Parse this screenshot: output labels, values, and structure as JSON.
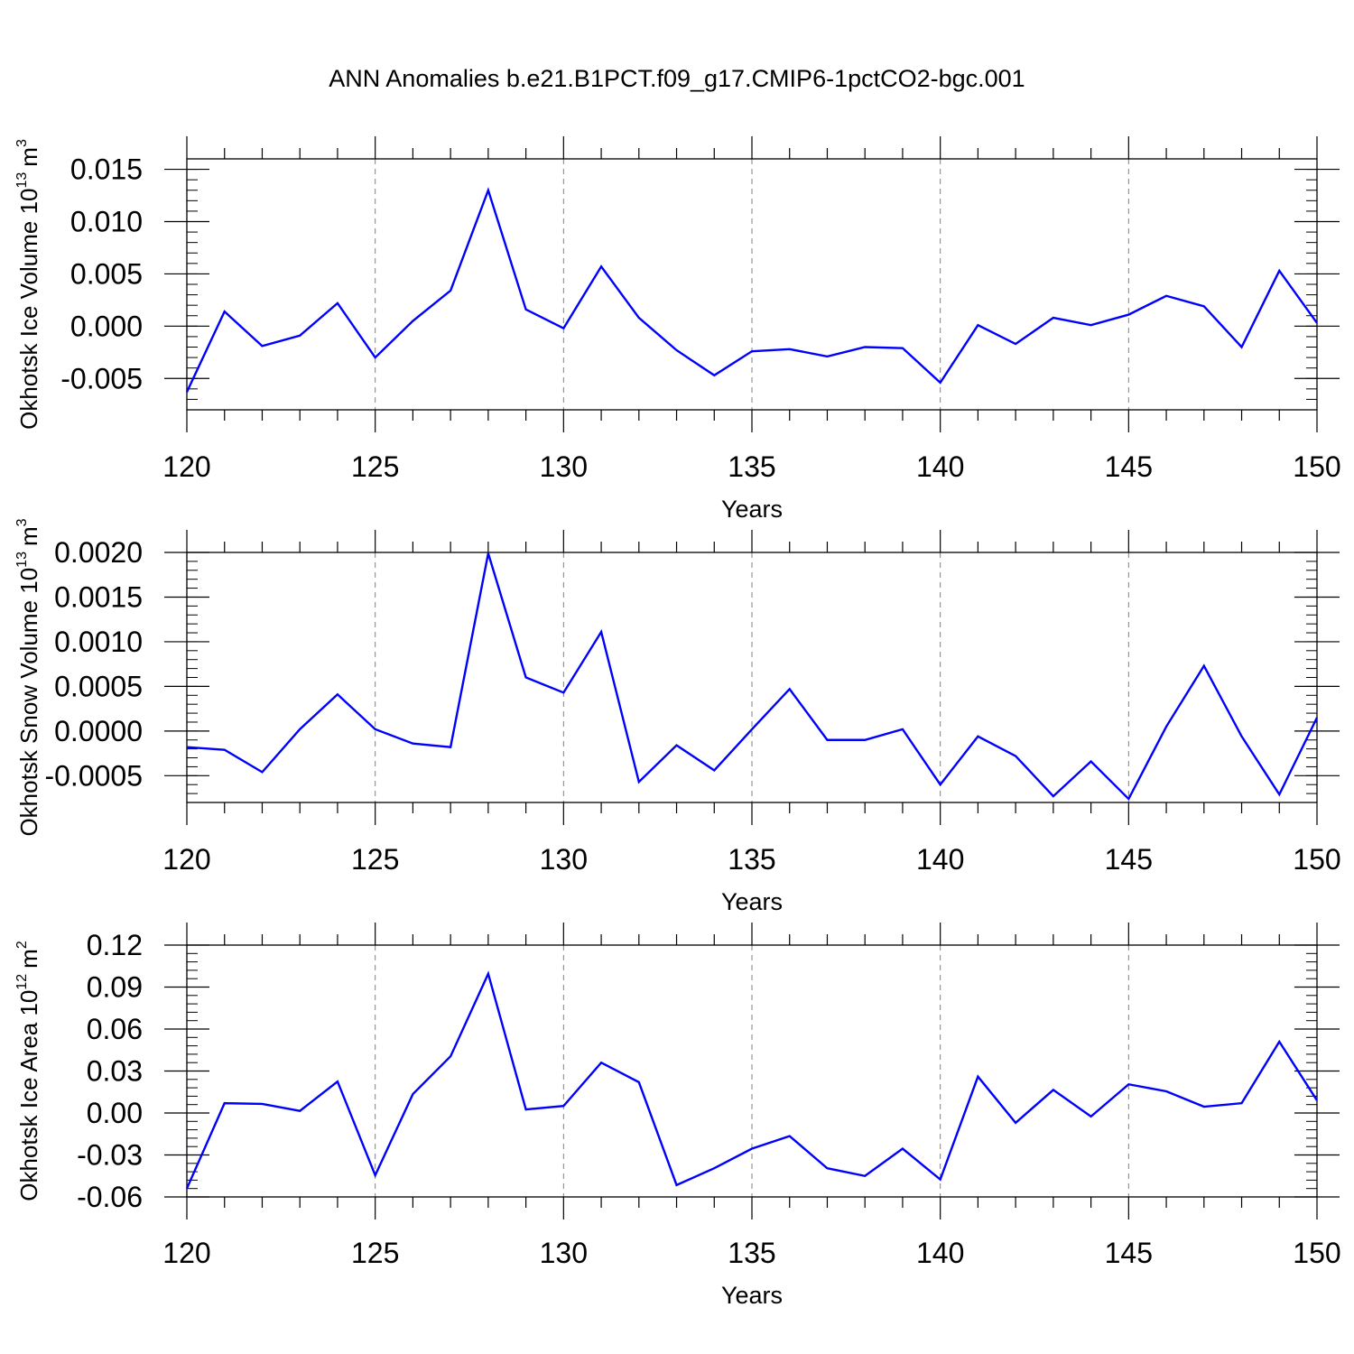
{
  "title": "ANN Anomalies b.e21.B1PCT.f09_g17.CMIP6-1pctCO2-bgc.001",
  "colors": {
    "line": "#0000ff",
    "axis": "#000000",
    "grid": "#808080"
  },
  "chart_data": [
    {
      "type": "line",
      "ylabel_main": "Okhotsk Ice Volume 10",
      "ylabel_exp": "13",
      "ylabel_unit": "m",
      "ylabel_unit_exp": "3",
      "xlabel": "Years",
      "xlim": [
        120,
        150
      ],
      "ylim": [
        -0.008,
        0.016
      ],
      "x_ticks": [
        "120",
        "125",
        "130",
        "135",
        "140",
        "145",
        "150"
      ],
      "y_ticks": [
        "0.015",
        "0.010",
        "0.005",
        "0.000",
        "-0.005"
      ],
      "y_tick_values": [
        0.015,
        0.01,
        0.005,
        0.0,
        -0.005
      ],
      "y_minor_step": 0.001,
      "x": [
        120,
        121,
        122,
        123,
        124,
        125,
        126,
        127,
        128,
        129,
        130,
        131,
        132,
        133,
        134,
        135,
        136,
        137,
        138,
        139,
        140,
        141,
        142,
        143,
        144,
        145,
        146,
        147,
        148,
        149,
        150
      ],
      "series": [
        {
          "values": [
            -0.0063,
            0.0014,
            -0.0019,
            -0.0009,
            0.0022,
            -0.003,
            0.0005,
            0.0034,
            0.013,
            0.0016,
            -0.0002,
            0.0057,
            0.0008,
            -0.0023,
            -0.0047,
            -0.0024,
            -0.0022,
            -0.0029,
            -0.002,
            -0.0021,
            -0.0054,
            0.0001,
            -0.0017,
            0.0008,
            0.0001,
            0.0011,
            0.0029,
            0.0019,
            -0.002,
            0.0053,
            0.0003
          ]
        }
      ]
    },
    {
      "type": "line",
      "ylabel_main": "Okhotsk Snow Volume 10",
      "ylabel_exp": "13",
      "ylabel_unit": "m",
      "ylabel_unit_exp": "3",
      "xlabel": "Years",
      "xlim": [
        120,
        150
      ],
      "ylim": [
        -0.0008,
        0.002
      ],
      "x_ticks": [
        "120",
        "125",
        "130",
        "135",
        "140",
        "145",
        "150"
      ],
      "y_ticks": [
        "0.0020",
        "0.0015",
        "0.0010",
        "0.0005",
        "0.0000",
        "-0.0005"
      ],
      "y_tick_values": [
        0.002,
        0.0015,
        0.001,
        0.0005,
        0.0,
        -0.0005
      ],
      "y_minor_step": 0.0001,
      "x": [
        120,
        121,
        122,
        123,
        124,
        125,
        126,
        127,
        128,
        129,
        130,
        131,
        132,
        133,
        134,
        135,
        136,
        137,
        138,
        139,
        140,
        141,
        142,
        143,
        144,
        145,
        146,
        147,
        148,
        149,
        150
      ],
      "series": [
        {
          "values": [
            -0.00018,
            -0.00021,
            -0.00046,
            2e-05,
            0.00041,
            2e-05,
            -0.00014,
            -0.00018,
            0.00199,
            0.0006,
            0.00043,
            0.00111,
            -0.00057,
            -0.00016,
            -0.00044,
            2e-05,
            0.00047,
            -0.0001,
            -0.0001,
            2e-05,
            -0.0006,
            -6e-05,
            -0.00028,
            -0.00073,
            -0.00034,
            -0.00076,
            5e-05,
            0.00073,
            -6e-05,
            -0.00071,
            0.00015
          ]
        }
      ]
    },
    {
      "type": "line",
      "ylabel_main": "Okhotsk Ice Area 10",
      "ylabel_exp": "12",
      "ylabel_unit": "m",
      "ylabel_unit_exp": "2",
      "xlabel": "Years",
      "xlim": [
        120,
        150
      ],
      "ylim": [
        -0.06,
        0.12
      ],
      "x_ticks": [
        "120",
        "125",
        "130",
        "135",
        "140",
        "145",
        "150"
      ],
      "y_ticks": [
        "0.12",
        "0.09",
        "0.06",
        "0.03",
        "0.00",
        "-0.03",
        "-0.06"
      ],
      "y_tick_values": [
        0.12,
        0.09,
        0.06,
        0.03,
        0.0,
        -0.03,
        -0.06
      ],
      "y_minor_step": 0.006,
      "x": [
        120,
        121,
        122,
        123,
        124,
        125,
        126,
        127,
        128,
        129,
        130,
        131,
        132,
        133,
        134,
        135,
        136,
        137,
        138,
        139,
        140,
        141,
        142,
        143,
        144,
        145,
        146,
        147,
        148,
        149,
        150
      ],
      "series": [
        {
          "values": [
            -0.054,
            0.007,
            0.0065,
            0.0015,
            0.0225,
            -0.0445,
            0.0135,
            0.0405,
            0.0995,
            0.0025,
            0.005,
            0.036,
            0.022,
            -0.0515,
            -0.0395,
            -0.0255,
            -0.0165,
            -0.0395,
            -0.045,
            -0.0255,
            -0.0475,
            0.026,
            -0.007,
            0.0165,
            -0.0025,
            0.0205,
            0.0155,
            0.0045,
            0.007,
            0.051,
            0.009
          ]
        }
      ]
    }
  ]
}
